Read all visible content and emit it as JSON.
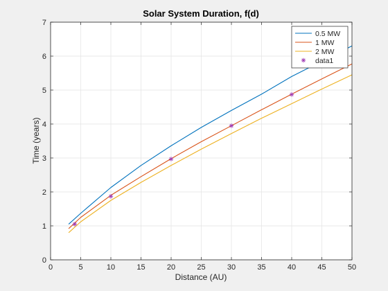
{
  "chart_data": {
    "type": "line",
    "title": "Solar System Duration, f(d)",
    "xlabel": "Distance (AU)",
    "ylabel": "Time (years)",
    "xlim": [
      0,
      50
    ],
    "ylim": [
      0,
      7
    ],
    "xticks": [
      0,
      5,
      10,
      15,
      20,
      25,
      30,
      35,
      40,
      45,
      50
    ],
    "yticks": [
      0,
      1,
      2,
      3,
      4,
      5,
      6,
      7
    ],
    "grid": true,
    "legend_position": "top-right",
    "series": [
      {
        "name": "0.5 MW",
        "type": "line",
        "color": "#0072BD",
        "x": [
          3,
          5,
          10,
          15,
          20,
          25,
          30,
          35,
          40,
          45,
          50
        ],
        "y": [
          1.05,
          1.37,
          2.13,
          2.78,
          3.36,
          3.9,
          4.4,
          4.88,
          5.4,
          5.85,
          6.3
        ]
      },
      {
        "name": "1 MW",
        "type": "line",
        "color": "#D95319",
        "x": [
          3,
          5,
          10,
          15,
          20,
          25,
          30,
          35,
          40,
          45,
          50
        ],
        "y": [
          0.92,
          1.25,
          1.9,
          2.45,
          2.98,
          3.48,
          3.95,
          4.42,
          4.88,
          5.33,
          5.77
        ]
      },
      {
        "name": "2 MW",
        "type": "line",
        "color": "#EDB120",
        "x": [
          3,
          5,
          10,
          15,
          20,
          25,
          30,
          35,
          40,
          45,
          50
        ],
        "y": [
          0.8,
          1.12,
          1.75,
          2.28,
          2.78,
          3.26,
          3.72,
          4.17,
          4.6,
          5.03,
          5.45
        ]
      },
      {
        "name": "data1",
        "type": "scatter",
        "color": "#A03CB4",
        "x": [
          4,
          10,
          20,
          30,
          40
        ],
        "y": [
          1.05,
          1.87,
          2.97,
          3.95,
          4.87
        ]
      }
    ]
  }
}
